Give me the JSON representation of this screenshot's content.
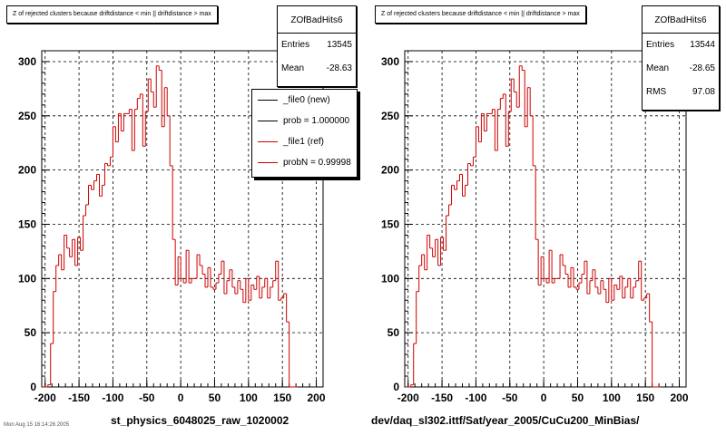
{
  "colors": {
    "new": "#000000",
    "ref": "#cc0000",
    "grid": "#000000"
  },
  "footer_text": "Mon Aug 15 16:14:26 2005",
  "legend": [
    {
      "label": "_file0 (new)",
      "color": "#000000"
    },
    {
      "label": "prob = 1.000000",
      "color": "#000000"
    },
    {
      "label": "_file1 (ref)",
      "color": "#cc0000"
    },
    {
      "label": "probN = 0.99998",
      "color": "#cc0000"
    }
  ],
  "chart_data": [
    {
      "type": "bar",
      "title": "Z of rejected clusters because driftdistance < min || driftdistance > max",
      "xlabel": "st_physics_6048025_raw_1020002",
      "ylabel": "",
      "xlim": [
        -205,
        210
      ],
      "ylim": [
        0,
        310
      ],
      "xticks": [
        "-200",
        "-150",
        "-100",
        "-50",
        "0",
        "50",
        "100",
        "150",
        "200"
      ],
      "yticks": [
        "0",
        "50",
        "100",
        "150",
        "200",
        "250",
        "300"
      ],
      "grid": true,
      "stats": {
        "name": "ZOfBadHits6",
        "entries_label": "Entries",
        "entries": "13545",
        "mean_label": "Mean",
        "mean": "-28.63"
      },
      "bin_width": 4,
      "bin_start": -204,
      "series": [
        {
          "name": "_file1 (ref)",
          "color": "#cc0000",
          "values": [
            0,
            0,
            2,
            40,
            88,
            112,
            122,
            108,
            140,
            128,
            120,
            136,
            112,
            138,
            126,
            158,
            168,
            186,
            182,
            190,
            196,
            176,
            186,
            206,
            204,
            212,
            240,
            226,
            252,
            236,
            252,
            252,
            256,
            218,
            256,
            266,
            270,
            222,
            254,
            284,
            272,
            258,
            296,
            292,
            240,
            276,
            250,
            204,
            136,
            94,
            120,
            100,
            96,
            126,
            96,
            100,
            100,
            122,
            112,
            104,
            92,
            110,
            92,
            90,
            96,
            104,
            116,
            86,
            98,
            108,
            92,
            86,
            98,
            90,
            78,
            100,
            80,
            94,
            90,
            102,
            82,
            92,
            100,
            82,
            92,
            98,
            116,
            80,
            82,
            86,
            60,
            0,
            0,
            0
          ]
        }
      ]
    },
    {
      "type": "bar",
      "title": "Z of rejected clusters because driftdistance < min || driftdistance > max",
      "xlabel": "dev/daq_sl302.ittf/Sat/year_2005/CuCu200_MinBias/",
      "ylabel": "",
      "xlim": [
        -205,
        210
      ],
      "ylim": [
        0,
        310
      ],
      "xticks": [
        "-200",
        "-150",
        "-100",
        "-50",
        "0",
        "50",
        "100",
        "150",
        "200"
      ],
      "yticks": [
        "0",
        "50",
        "100",
        "150",
        "200",
        "250",
        "300"
      ],
      "grid": true,
      "stats": {
        "name": "ZOfBadHits6",
        "entries_label": "Entries",
        "entries": "13544",
        "mean_label": "Mean",
        "mean": "-28.65",
        "rms_label": "RMS",
        "rms": "97.08"
      },
      "bin_width": 4,
      "bin_start": -204,
      "series": [
        {
          "name": "_file1 (ref)",
          "color": "#cc0000",
          "values": [
            0,
            0,
            2,
            40,
            88,
            112,
            122,
            108,
            140,
            128,
            120,
            136,
            112,
            138,
            126,
            158,
            168,
            186,
            182,
            190,
            196,
            176,
            186,
            206,
            204,
            212,
            240,
            226,
            252,
            236,
            252,
            252,
            256,
            218,
            256,
            266,
            270,
            222,
            254,
            284,
            272,
            258,
            296,
            292,
            240,
            276,
            250,
            204,
            136,
            94,
            120,
            100,
            96,
            126,
            96,
            100,
            100,
            122,
            112,
            104,
            92,
            110,
            92,
            90,
            96,
            104,
            116,
            86,
            98,
            108,
            92,
            86,
            98,
            90,
            78,
            100,
            80,
            94,
            90,
            102,
            82,
            92,
            100,
            82,
            92,
            98,
            116,
            80,
            82,
            86,
            60,
            0,
            0,
            0
          ]
        }
      ]
    }
  ]
}
